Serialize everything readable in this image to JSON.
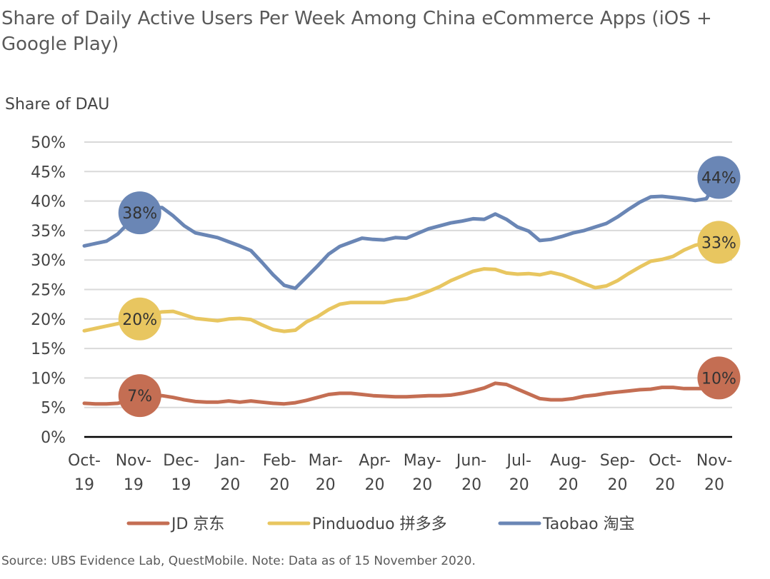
{
  "title": "Share of Daily Active Users Per Week Among China eCommerce Apps (iOS + Google Play)",
  "source": "Source: UBS Evidence Lab, QuestMobile. Note: Data as of 15 November 2020.",
  "chart_data": {
    "type": "line",
    "title": "Share of Daily Active Users Per Week Among China eCommerce Apps (iOS + Google Play)",
    "ylabel": "Share of DAU",
    "xlabel": "",
    "ylim": [
      0,
      50
    ],
    "yticks": [
      "0%",
      "5%",
      "10%",
      "15%",
      "20%",
      "25%",
      "30%",
      "35%",
      "40%",
      "45%",
      "50%"
    ],
    "xticks": [
      {
        "date": "2019-10-01",
        "line1": "Oct-",
        "line2": "19"
      },
      {
        "date": "2019-11-01",
        "line1": "Nov-",
        "line2": "19"
      },
      {
        "date": "2019-12-01",
        "line1": "Dec-",
        "line2": "19"
      },
      {
        "date": "2020-01-01",
        "line1": "Jan-",
        "line2": "20"
      },
      {
        "date": "2020-02-01",
        "line1": "Feb-",
        "line2": "20"
      },
      {
        "date": "2020-03-01",
        "line1": "Mar-",
        "line2": "20"
      },
      {
        "date": "2020-04-01",
        "line1": "Apr-",
        "line2": "20"
      },
      {
        "date": "2020-05-01",
        "line1": "May-",
        "line2": "20"
      },
      {
        "date": "2020-06-01",
        "line1": "Jun-",
        "line2": "20"
      },
      {
        "date": "2020-07-01",
        "line1": "Jul-",
        "line2": "20"
      },
      {
        "date": "2020-08-01",
        "line1": "Aug-",
        "line2": "20"
      },
      {
        "date": "2020-09-01",
        "line1": "Sep-",
        "line2": "20"
      },
      {
        "date": "2020-10-01",
        "line1": "Oct-",
        "line2": "20"
      },
      {
        "date": "2020-11-01",
        "line1": "Nov-",
        "line2": "20"
      }
    ],
    "grid": "horizontal",
    "legend_position": "bottom",
    "x": [
      "2019-10-01",
      "2019-10-08",
      "2019-10-15",
      "2019-10-22",
      "2019-10-29",
      "2019-11-05",
      "2019-11-12",
      "2019-11-19",
      "2019-11-26",
      "2019-12-03",
      "2019-12-10",
      "2019-12-17",
      "2019-12-24",
      "2019-12-31",
      "2020-01-07",
      "2020-01-14",
      "2020-01-21",
      "2020-01-28",
      "2020-02-04",
      "2020-02-11",
      "2020-02-18",
      "2020-02-25",
      "2020-03-03",
      "2020-03-10",
      "2020-03-17",
      "2020-03-24",
      "2020-03-31",
      "2020-04-07",
      "2020-04-14",
      "2020-04-21",
      "2020-04-28",
      "2020-05-05",
      "2020-05-12",
      "2020-05-19",
      "2020-05-26",
      "2020-06-02",
      "2020-06-09",
      "2020-06-16",
      "2020-06-23",
      "2020-06-30",
      "2020-07-07",
      "2020-07-14",
      "2020-07-21",
      "2020-07-28",
      "2020-08-04",
      "2020-08-11",
      "2020-08-18",
      "2020-08-25",
      "2020-09-01",
      "2020-09-08",
      "2020-09-15",
      "2020-09-22",
      "2020-09-29",
      "2020-10-06",
      "2020-10-13",
      "2020-10-20",
      "2020-10-27",
      "2020-11-03"
    ],
    "series": [
      {
        "name": "JD 京东",
        "color": "#c46e53",
        "values": [
          5.7,
          5.6,
          5.6,
          5.7,
          6.2,
          6.9,
          7.0,
          7.0,
          6.7,
          6.3,
          6.0,
          5.9,
          5.9,
          6.1,
          5.9,
          6.1,
          5.9,
          5.7,
          5.6,
          5.8,
          6.2,
          6.7,
          7.2,
          7.4,
          7.4,
          7.2,
          7.0,
          6.9,
          6.8,
          6.8,
          6.9,
          7.0,
          7.0,
          7.1,
          7.4,
          7.8,
          8.3,
          9.1,
          8.9,
          8.1,
          7.3,
          6.5,
          6.3,
          6.3,
          6.5,
          6.9,
          7.1,
          7.4,
          7.6,
          7.8,
          8.0,
          8.1,
          8.4,
          8.4,
          8.2,
          8.2,
          8.2,
          9.6
        ],
        "annotations": [
          {
            "date": "2019-11-05",
            "label": "7%"
          },
          {
            "date": "2020-11-03",
            "label": "10%"
          }
        ]
      },
      {
        "name": "Pinduoduo 拼多多",
        "color": "#e8c660",
        "values": [
          18.0,
          18.4,
          18.8,
          19.2,
          19.6,
          20.0,
          20.9,
          21.2,
          21.3,
          20.7,
          20.1,
          19.9,
          19.7,
          20.0,
          20.1,
          19.9,
          19.0,
          18.2,
          17.9,
          18.1,
          19.5,
          20.4,
          21.6,
          22.5,
          22.8,
          22.8,
          22.8,
          22.8,
          23.2,
          23.4,
          24.0,
          24.7,
          25.5,
          26.5,
          27.3,
          28.1,
          28.5,
          28.4,
          27.8,
          27.6,
          27.7,
          27.5,
          27.9,
          27.5,
          26.8,
          26.0,
          25.3,
          25.6,
          26.5,
          27.7,
          28.8,
          29.8,
          30.1,
          30.6,
          31.7,
          32.5,
          32.9,
          33.3
        ],
        "annotations": [
          {
            "date": "2019-11-05",
            "label": "20%"
          },
          {
            "date": "2020-11-03",
            "label": "33%"
          }
        ]
      },
      {
        "name": "Taobao 淘宝",
        "color": "#6a86b5",
        "values": [
          32.4,
          32.8,
          33.2,
          34.4,
          36.3,
          38.3,
          38.9,
          38.9,
          37.5,
          35.8,
          34.6,
          34.2,
          33.8,
          33.1,
          32.4,
          31.6,
          29.6,
          27.5,
          25.7,
          25.2,
          27.1,
          29.0,
          31.0,
          32.3,
          33.0,
          33.7,
          33.5,
          33.4,
          33.8,
          33.7,
          34.5,
          35.3,
          35.8,
          36.3,
          36.6,
          37.0,
          36.9,
          37.8,
          36.9,
          35.6,
          34.9,
          33.3,
          33.5,
          34.0,
          34.6,
          35.0,
          35.6,
          36.2,
          37.3,
          38.6,
          39.8,
          40.7,
          40.8,
          40.6,
          40.4,
          40.1,
          40.4,
          43.5
        ],
        "annotations": [
          {
            "date": "2019-11-05",
            "label": "38%"
          },
          {
            "date": "2020-11-03",
            "label": "44%"
          }
        ]
      }
    ]
  }
}
